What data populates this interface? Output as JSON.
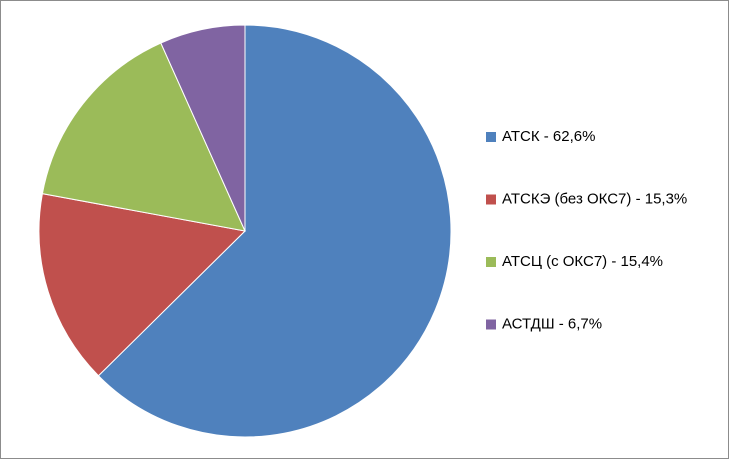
{
  "chart_data": {
    "type": "pie",
    "categories": [
      "АТСК - 62,6%",
      "АТСКЭ (без ОКС7) - 15,3%",
      "АТСЦ (с ОКС7) - 15,4%",
      "АСТДШ - 6,7%"
    ],
    "values": [
      62.6,
      15.3,
      15.4,
      6.7
    ],
    "colors": [
      "#4f81bd",
      "#c0504d",
      "#9bbb59",
      "#8064a2"
    ],
    "legend": "right"
  }
}
